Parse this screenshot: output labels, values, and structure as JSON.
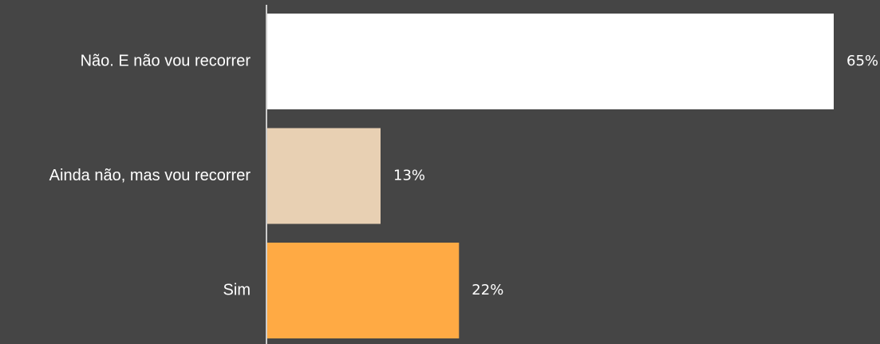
{
  "chart_data": {
    "type": "bar",
    "orientation": "horizontal",
    "categories": [
      "Não. E não vou recorrer",
      "Ainda não, mas vou recorrer",
      "Sim"
    ],
    "values": [
      65,
      13,
      22
    ],
    "value_labels": [
      "65%",
      "13%",
      "22%"
    ],
    "unit": "%",
    "xlim": [
      0,
      70
    ],
    "grid": false,
    "legend": "none",
    "colors": [
      "#ffffff",
      "#e8d0b3",
      "#ffaa44"
    ],
    "background": "#454545",
    "axis_color": "#cccccc"
  }
}
